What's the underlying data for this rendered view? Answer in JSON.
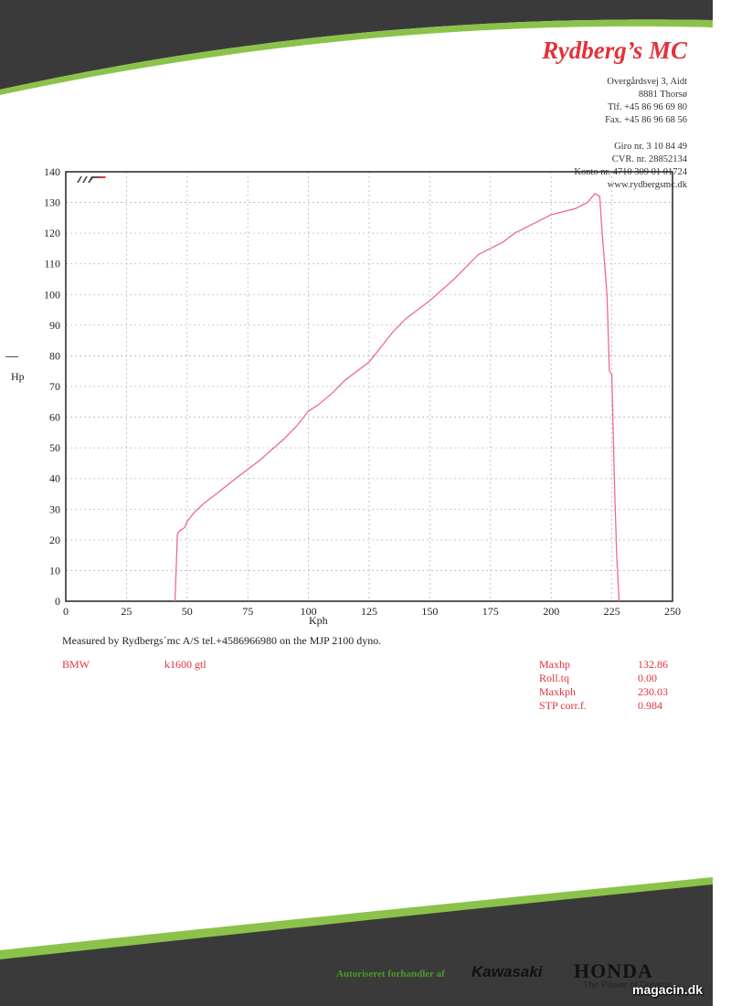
{
  "header": {
    "company": "Rydberg’s MC",
    "address_lines": [
      "Overgårdsvej 3, Aidt",
      "8881 Thorsø",
      "Tlf. +45 86 96 69 80",
      "Fax. +45 86 96 68 56"
    ],
    "bank_lines": [
      "Giro nr. 3 10 84 49",
      "CVR. nr. 28852134",
      "Konto nr. 4710 309 01 01724",
      "www.rydbergsmc.dk"
    ]
  },
  "chart_data": {
    "type": "line",
    "ylabel": "Hp",
    "xlabel": "Kph",
    "xlim": [
      0,
      250
    ],
    "ylim": [
      0,
      140
    ],
    "x_ticks": [
      0,
      25,
      50,
      75,
      100,
      125,
      150,
      175,
      200,
      225,
      250
    ],
    "y_ticks": [
      0,
      10,
      20,
      30,
      40,
      50,
      60,
      70,
      80,
      90,
      100,
      110,
      120,
      130,
      140
    ],
    "grid": true,
    "series": [
      {
        "color": "#f06a86",
        "points": [
          [
            45,
            0
          ],
          [
            46,
            22
          ],
          [
            47,
            23
          ],
          [
            49,
            24
          ],
          [
            50,
            26
          ],
          [
            53,
            29
          ],
          [
            57,
            32
          ],
          [
            62,
            35
          ],
          [
            70,
            40
          ],
          [
            80,
            46
          ],
          [
            90,
            53
          ],
          [
            95,
            57
          ],
          [
            100,
            62
          ],
          [
            104,
            64
          ],
          [
            110,
            68
          ],
          [
            115,
            72
          ],
          [
            120,
            75
          ],
          [
            125,
            78
          ],
          [
            130,
            83
          ],
          [
            135,
            88
          ],
          [
            140,
            92
          ],
          [
            150,
            98
          ],
          [
            160,
            105
          ],
          [
            165,
            109
          ],
          [
            170,
            113
          ],
          [
            175,
            115
          ],
          [
            180,
            117
          ],
          [
            185,
            120
          ],
          [
            190,
            122
          ],
          [
            195,
            124
          ],
          [
            200,
            126
          ],
          [
            205,
            127
          ],
          [
            210,
            128
          ],
          [
            215,
            130
          ],
          [
            218,
            132.86
          ],
          [
            220,
            132
          ],
          [
            221,
            120
          ],
          [
            223,
            100
          ],
          [
            224,
            75
          ],
          [
            225,
            74
          ],
          [
            226,
            40
          ],
          [
            227,
            15
          ],
          [
            228,
            0
          ]
        ]
      }
    ]
  },
  "measured_text": "Measured by Rydbergs´mc A/S tel.+4586966980 on the MJP 2100 dyno.",
  "vehicle": {
    "make": "BMW",
    "model": "k1600 gtl"
  },
  "stats": [
    {
      "label": "Maxhp",
      "value": "132.86"
    },
    {
      "label": "Roll.tq",
      "value": "0.00"
    },
    {
      "label": "Maxkph",
      "value": "230.03"
    },
    {
      "label": "STP corr.f.",
      "value": "0.984"
    }
  ],
  "footer": {
    "authorized_text": "Autoriseret forhandler af",
    "brand1": "Kawasaki",
    "brand2": "HONDA",
    "brand2_tagline": "The Power of Dreams",
    "watermark": "magacin.dk"
  },
  "colors": {
    "accent_red": "#e2323c",
    "curve": "#f06a86",
    "band_dark": "#3a3a3a",
    "band_green": "#8bc34a"
  }
}
